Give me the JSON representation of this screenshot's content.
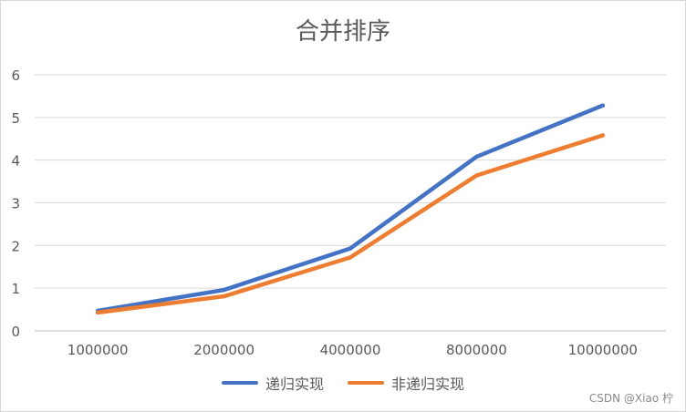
{
  "chart_data": {
    "type": "line",
    "title": "合并排序",
    "categories": [
      "1000000",
      "2000000",
      "4000000",
      "8000000",
      "10000000"
    ],
    "ylim": [
      0,
      6
    ],
    "yticks": [
      "0",
      "1",
      "2",
      "3",
      "4",
      "5",
      "6"
    ],
    "grid": true,
    "legend_position": "bottom",
    "series": [
      {
        "name": "递归实现",
        "color": "#4472C4",
        "values": [
          0.47,
          0.96,
          1.93,
          4.08,
          5.28
        ]
      },
      {
        "name": "非递归实现",
        "color": "#ED7D31",
        "values": [
          0.43,
          0.81,
          1.72,
          3.64,
          4.58
        ]
      }
    ]
  },
  "watermark": "CSDN @Xiao 柠"
}
